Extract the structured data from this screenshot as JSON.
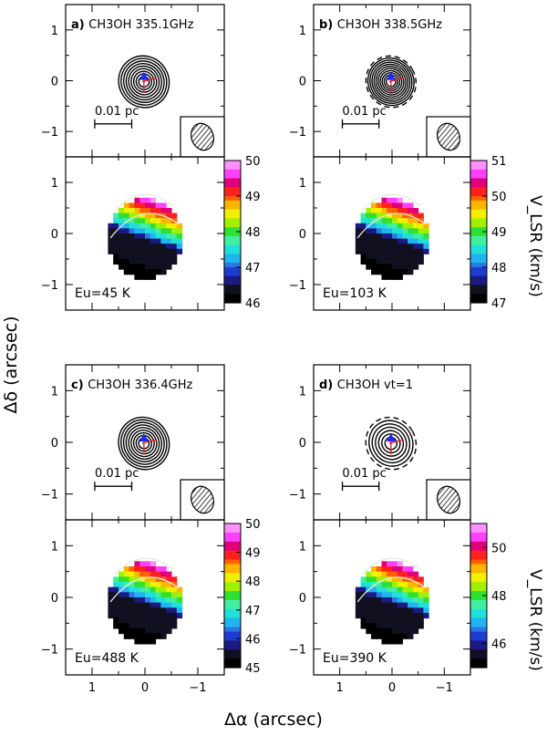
{
  "chart_data": {
    "type": "heatmap",
    "title": "",
    "xlabel": "Δα (arcsec)",
    "ylabel": "Δδ (arcsec)",
    "colorbar_label": "V_LSR (km/s)",
    "xlim": [
      1.5,
      -1.5
    ],
    "ylim": [
      -1.5,
      1.5
    ],
    "x_ticks": [
      "1",
      "0",
      "−1"
    ],
    "y_ticks": [
      "1",
      "0",
      "−1"
    ],
    "scale_bar": "0.01 pc",
    "panels": [
      {
        "label": "a)",
        "species": "CH3OH",
        "freq": "335.1GHz",
        "energy": "Eu=45 K",
        "colorbar": {
          "vmin": 46,
          "vmax": 50,
          "ticks": [
            50,
            49,
            48,
            47,
            46
          ]
        },
        "contours": 9
      },
      {
        "label": "b)",
        "species": "CH3OH",
        "freq": "338.5GHz",
        "energy": "Eu=103 K",
        "colorbar": {
          "vmin": 47,
          "vmax": 51,
          "ticks": [
            51,
            50,
            49,
            48,
            47
          ]
        },
        "contours": 11
      },
      {
        "label": "c)",
        "species": "CH3OH",
        "freq": "336.4GHz",
        "energy": "Eu=488 K",
        "colorbar": {
          "vmin": 45,
          "vmax": 50,
          "ticks": [
            50,
            49,
            48,
            47,
            46,
            45
          ]
        },
        "contours": 9
      },
      {
        "label": "d)",
        "species": "CH3OH",
        "freq": "vt=1",
        "energy": "Eu=390 K",
        "colorbar": {
          "vmin": 45,
          "vmax": 51,
          "ticks": [
            50,
            48,
            46
          ]
        },
        "contours": 7
      }
    ]
  }
}
